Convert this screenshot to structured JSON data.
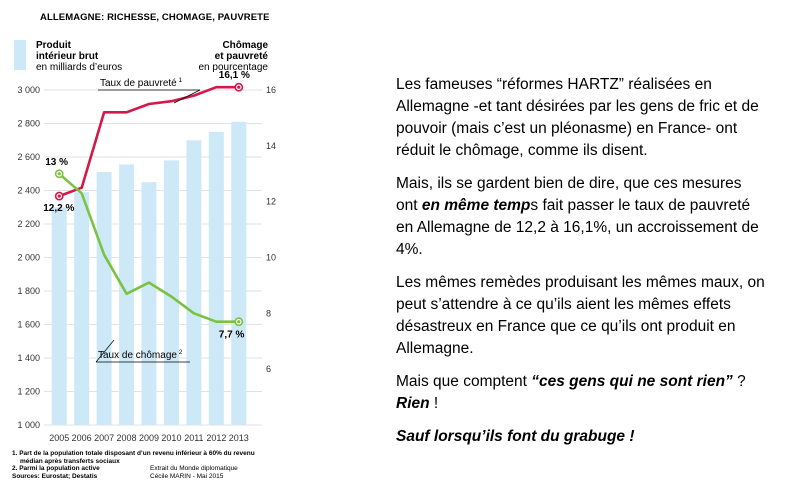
{
  "chart": {
    "title": "ALLEMAGNE: RICHESSE, CHOMAGE, PAUVRETE",
    "left_legend": [
      "Produit",
      "intérieur brut",
      "en milliards d’euros"
    ],
    "right_legend": [
      "Chômage",
      "et pauvreté",
      "en pourcentage"
    ],
    "poverty_label": "Taux de pauvreté",
    "poverty_sup": "1",
    "unemployment_label": "Taux de chômage",
    "unemployment_sup": "2",
    "annotations": {
      "poverty_start": "12,2 %",
      "poverty_end": "16,1 %",
      "unemployment_start": "13 %",
      "unemployment_end": "7,7 %"
    },
    "footnotes": {
      "note1_line1": "1. Part de la population totale disposant d’un revenu inférieur à 60% du revenu",
      "note1_line2": "médian après transferts sociaux",
      "note2": "2. Parmi la population active",
      "sources": "Sources: Eurostat; Destatis",
      "credit_line1": "Extrait du Monde diplomatique",
      "credit_line2": "Cécile MARIN - Mai 2015"
    },
    "colors": {
      "gdp_bars": "#cde9f7",
      "poverty_line": "#d3184a",
      "unemployment_line": "#7cc242",
      "axis_text": "#333333"
    }
  },
  "chart_data": {
    "type": "bar",
    "title": "ALLEMAGNE: RICHESSE, CHOMAGE, PAUVRETE",
    "categories": [
      "2005",
      "2006",
      "2007",
      "2008",
      "2009",
      "2010",
      "2011",
      "2012",
      "2013"
    ],
    "series": [
      {
        "name": "Produit intérieur brut en milliards d’euros",
        "type": "bar",
        "axis": "left",
        "values": [
          2300,
          2390,
          2510,
          2555,
          2450,
          2580,
          2700,
          2750,
          2810
        ]
      },
      {
        "name": "Taux de pauvreté",
        "type": "line",
        "axis": "right",
        "values": [
          12.2,
          12.5,
          15.2,
          15.2,
          15.5,
          15.6,
          15.8,
          16.1,
          16.1
        ]
      },
      {
        "name": "Taux de chômage",
        "type": "line",
        "axis": "right",
        "values": [
          13.0,
          12.3,
          10.1,
          8.7,
          9.1,
          8.6,
          8.0,
          7.7,
          7.7
        ]
      }
    ],
    "left_axis": {
      "ylim": [
        1000,
        3000
      ],
      "ticks": [
        1000,
        1200,
        1400,
        1600,
        1800,
        2000,
        2200,
        2400,
        2600,
        2800,
        3000
      ],
      "tick_labels": [
        "1 000",
        "1 200",
        "1 400",
        "1 600",
        "1 800",
        "2 000",
        "2 200",
        "2 400",
        "2 600",
        "2 800",
        "3 000"
      ]
    },
    "right_axis": {
      "ylim": [
        4,
        16
      ],
      "ticks": [
        6,
        8,
        10,
        12,
        14,
        16
      ]
    },
    "grid": true,
    "legend": "top"
  },
  "article": {
    "p1": "Les fameuses “réformes HARTZ” réalisées en Allemagne -et tant désirées par les gens de fric et de pouvoir (mais c’est un pléonasme) en France- ont réduit le chômage, comme ils disent.",
    "p2_a": "Mais, ils se gardent bien de dire, que ces mesures ont ",
    "p2_b": "en même temp",
    "p2_c": "s fait passer le taux de pauvreté en Allemagne de 12,2 à 16,1%, un accroissement de 4%.",
    "p3": "Les mêmes remèdes produisant les mêmes maux, on peut s’attendre à ce qu’ils aient les mêmes effets désastreux en France que ce qu’ils ont produit en Allemagne.",
    "p4_a": "Mais que comptent ",
    "p4_b": "“ces gens qui ne sont rien”",
    "p4_c": " ?",
    "p4_d": "Rien",
    "p4_e": " !",
    "p5": "Sauf lorsqu’ils font du grabuge !"
  }
}
